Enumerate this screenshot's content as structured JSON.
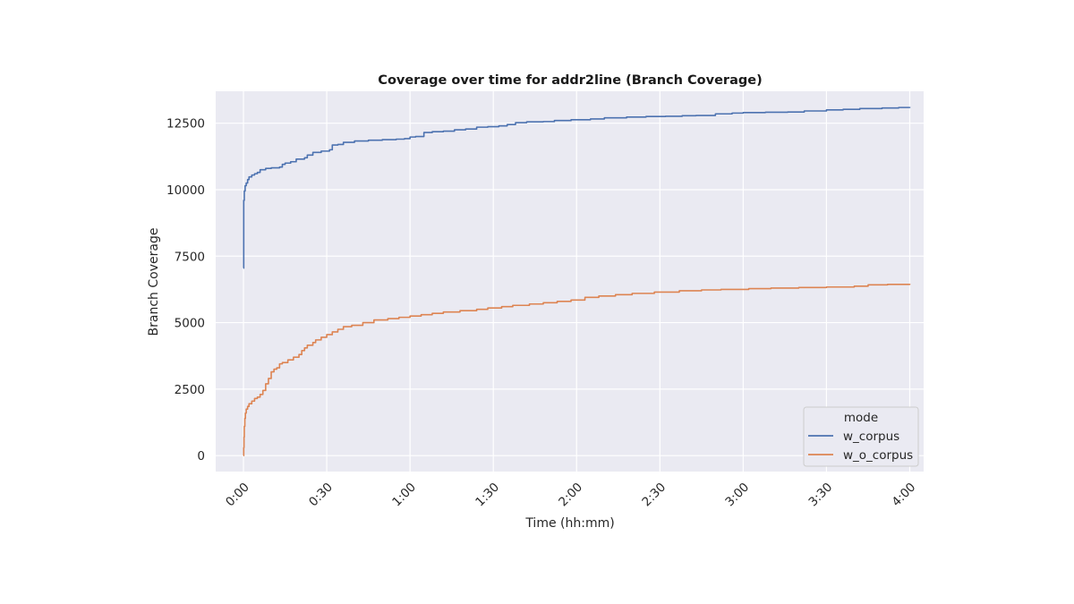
{
  "chart_data": {
    "type": "line",
    "title": "Coverage over time for addr2line (Branch Coverage)",
    "xlabel": "Time (hh:mm)",
    "ylabel": "Branch Coverage",
    "xlim_minutes": [
      -10,
      245
    ],
    "ylim": [
      -600,
      13700
    ],
    "xticks": [
      {
        "value": 0,
        "label": "0:00"
      },
      {
        "value": 30,
        "label": "0:30"
      },
      {
        "value": 60,
        "label": "1:00"
      },
      {
        "value": 90,
        "label": "1:30"
      },
      {
        "value": 120,
        "label": "2:00"
      },
      {
        "value": 150,
        "label": "2:30"
      },
      {
        "value": 180,
        "label": "3:00"
      },
      {
        "value": 210,
        "label": "3:30"
      },
      {
        "value": 240,
        "label": "4:00"
      }
    ],
    "yticks": [
      {
        "value": 0,
        "label": "0"
      },
      {
        "value": 2500,
        "label": "2500"
      },
      {
        "value": 5000,
        "label": "5000"
      },
      {
        "value": 7500,
        "label": "7500"
      },
      {
        "value": 10000,
        "label": "10000"
      },
      {
        "value": 12500,
        "label": "12500"
      }
    ],
    "grid": true,
    "legend": {
      "title": "mode",
      "placement": "lower-right"
    },
    "series": [
      {
        "name": "w_corpus",
        "color": "#4c72b0",
        "step": true,
        "points": [
          [
            0,
            7050
          ],
          [
            0.1,
            9600
          ],
          [
            0.3,
            9950
          ],
          [
            0.6,
            10150
          ],
          [
            1,
            10250
          ],
          [
            1.5,
            10380
          ],
          [
            2,
            10480
          ],
          [
            3,
            10550
          ],
          [
            4,
            10600
          ],
          [
            5,
            10650
          ],
          [
            6,
            10750
          ],
          [
            8,
            10800
          ],
          [
            10,
            10820
          ],
          [
            13,
            10850
          ],
          [
            14,
            10950
          ],
          [
            15,
            11000
          ],
          [
            17,
            11050
          ],
          [
            19,
            11150
          ],
          [
            22,
            11200
          ],
          [
            23,
            11300
          ],
          [
            25,
            11400
          ],
          [
            28,
            11450
          ],
          [
            31,
            11500
          ],
          [
            32,
            11680
          ],
          [
            34,
            11700
          ],
          [
            36,
            11780
          ],
          [
            40,
            11830
          ],
          [
            45,
            11860
          ],
          [
            50,
            11880
          ],
          [
            55,
            11900
          ],
          [
            58,
            11920
          ],
          [
            60,
            11980
          ],
          [
            62,
            12000
          ],
          [
            65,
            12150
          ],
          [
            68,
            12180
          ],
          [
            72,
            12200
          ],
          [
            76,
            12250
          ],
          [
            80,
            12280
          ],
          [
            84,
            12350
          ],
          [
            88,
            12370
          ],
          [
            92,
            12400
          ],
          [
            95,
            12450
          ],
          [
            98,
            12520
          ],
          [
            102,
            12550
          ],
          [
            108,
            12560
          ],
          [
            112,
            12600
          ],
          [
            118,
            12630
          ],
          [
            125,
            12660
          ],
          [
            130,
            12700
          ],
          [
            138,
            12730
          ],
          [
            145,
            12750
          ],
          [
            152,
            12760
          ],
          [
            158,
            12780
          ],
          [
            163,
            12790
          ],
          [
            170,
            12850
          ],
          [
            176,
            12880
          ],
          [
            180,
            12900
          ],
          [
            188,
            12910
          ],
          [
            196,
            12920
          ],
          [
            202,
            12960
          ],
          [
            210,
            13000
          ],
          [
            216,
            13020
          ],
          [
            222,
            13050
          ],
          [
            230,
            13070
          ],
          [
            236,
            13090
          ],
          [
            240,
            13110
          ]
        ]
      },
      {
        "name": "w_o_corpus",
        "color": "#dd8452",
        "step": true,
        "points": [
          [
            0,
            0
          ],
          [
            0.1,
            300
          ],
          [
            0.2,
            700
          ],
          [
            0.3,
            1100
          ],
          [
            0.5,
            1400
          ],
          [
            0.7,
            1600
          ],
          [
            1,
            1750
          ],
          [
            1.5,
            1850
          ],
          [
            2,
            1950
          ],
          [
            3,
            2050
          ],
          [
            4,
            2150
          ],
          [
            5,
            2200
          ],
          [
            6,
            2300
          ],
          [
            7,
            2450
          ],
          [
            8,
            2700
          ],
          [
            9,
            2900
          ],
          [
            10,
            3150
          ],
          [
            11,
            3250
          ],
          [
            12,
            3300
          ],
          [
            13,
            3450
          ],
          [
            14,
            3500
          ],
          [
            16,
            3600
          ],
          [
            18,
            3700
          ],
          [
            20,
            3800
          ],
          [
            21,
            3950
          ],
          [
            22,
            4050
          ],
          [
            23,
            4150
          ],
          [
            25,
            4250
          ],
          [
            26,
            4350
          ],
          [
            28,
            4450
          ],
          [
            30,
            4550
          ],
          [
            32,
            4650
          ],
          [
            34,
            4750
          ],
          [
            36,
            4850
          ],
          [
            39,
            4900
          ],
          [
            43,
            5000
          ],
          [
            47,
            5100
          ],
          [
            52,
            5150
          ],
          [
            56,
            5200
          ],
          [
            60,
            5250
          ],
          [
            64,
            5300
          ],
          [
            68,
            5350
          ],
          [
            72,
            5400
          ],
          [
            78,
            5450
          ],
          [
            84,
            5500
          ],
          [
            88,
            5550
          ],
          [
            93,
            5600
          ],
          [
            97,
            5650
          ],
          [
            103,
            5700
          ],
          [
            108,
            5750
          ],
          [
            113,
            5800
          ],
          [
            118,
            5850
          ],
          [
            123,
            5950
          ],
          [
            128,
            6000
          ],
          [
            134,
            6050
          ],
          [
            140,
            6100
          ],
          [
            148,
            6150
          ],
          [
            157,
            6200
          ],
          [
            165,
            6230
          ],
          [
            172,
            6250
          ],
          [
            182,
            6280
          ],
          [
            190,
            6300
          ],
          [
            200,
            6320
          ],
          [
            210,
            6340
          ],
          [
            220,
            6370
          ],
          [
            225,
            6420
          ],
          [
            232,
            6440
          ],
          [
            240,
            6460
          ]
        ]
      }
    ]
  }
}
